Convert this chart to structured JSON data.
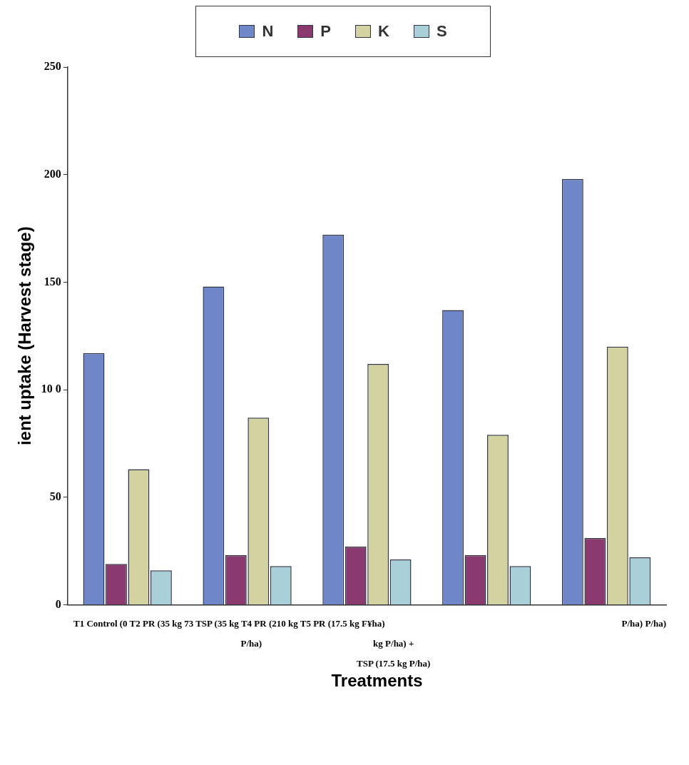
{
  "chart_data": {
    "type": "bar",
    "xlabel": "Treatments",
    "ylabel": "ient uptake (Harvest stage)",
    "categories": [
      null,
      null,
      null,
      null,
      null
    ],
    "series": [
      {
        "name": "N",
        "color": "#6f86c8",
        "values": [
          117,
          148,
          172,
          137,
          198
        ]
      },
      {
        "name": "P",
        "color": "#8a3a6e",
        "values": [
          19,
          23,
          27,
          23,
          31
        ]
      },
      {
        "name": "K",
        "color": "#d2d3a0",
        "values": [
          63,
          87,
          112,
          79,
          120
        ]
      },
      {
        "name": "S",
        "color": "#a9cfd9",
        "values": [
          16,
          18,
          21,
          18,
          22
        ]
      }
    ],
    "ylim": [
      0,
      250
    ],
    "yticks": [
      0,
      50,
      {
        "value": 100,
        "label": "10 0"
      },
      150,
      200,
      250
    ],
    "grid": false,
    "legend": "top",
    "annotations": [
      "T1 Control (0 T2 PR (35 kg 73 TSP (35 kg T4 PR (210 kg T5 PR (17.5 kg F¥ha)",
      "P/ha) P/ha)",
      "P/ha)",
      "kg P/ha) +",
      "TSP (17.5 kg P/ha)"
    ]
  }
}
